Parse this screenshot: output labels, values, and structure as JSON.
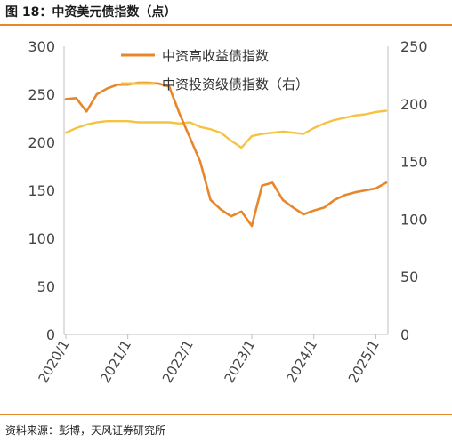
{
  "header": {
    "title": "图 18：中资美元债指数（点）"
  },
  "footer": {
    "source": "资料来源：彭博，天风证券研究所"
  },
  "chart_data": {
    "type": "line",
    "x_tick_labels": [
      "2020/1",
      "2021/1",
      "2022/1",
      "2023/1",
      "2024/1",
      "2025/1"
    ],
    "x": [
      "2020/1",
      "2020/3",
      "2020/5",
      "2020/7",
      "2020/9",
      "2020/11",
      "2021/1",
      "2021/3",
      "2021/5",
      "2021/7",
      "2021/9",
      "2021/11",
      "2022/1",
      "2022/3",
      "2022/5",
      "2022/7",
      "2022/9",
      "2022/11",
      "2023/1",
      "2023/3",
      "2023/5",
      "2023/7",
      "2023/9",
      "2023/11",
      "2024/1",
      "2024/3",
      "2024/5",
      "2024/7",
      "2024/9",
      "2024/11",
      "2025/1",
      "2025/3"
    ],
    "y_left": {
      "ylim": [
        0,
        300
      ],
      "ticks": [
        0,
        50,
        100,
        150,
        200,
        250,
        300
      ]
    },
    "y_right": {
      "ylim": [
        0,
        250
      ],
      "ticks": [
        0,
        50,
        100,
        150,
        200,
        250
      ]
    },
    "series": [
      {
        "name": "中资高收益债指数",
        "axis": "left",
        "color": "#e8862a",
        "values": [
          245,
          246,
          232,
          250,
          256,
          260,
          260,
          262,
          262,
          261,
          258,
          230,
          205,
          180,
          140,
          130,
          123,
          128,
          113,
          155,
          158,
          140,
          132,
          125,
          129,
          132,
          140,
          145,
          148,
          150,
          152,
          158
        ]
      },
      {
        "name": "中资投资级债指数（右）",
        "axis": "right",
        "color": "#f5c342",
        "values": [
          175,
          179,
          182,
          184,
          185,
          185,
          185,
          184,
          184,
          184,
          184,
          183,
          184,
          180,
          178,
          175,
          168,
          162,
          172,
          174,
          175,
          176,
          175,
          174,
          179,
          183,
          186,
          188,
          190,
          191,
          193,
          194
        ]
      }
    ]
  }
}
